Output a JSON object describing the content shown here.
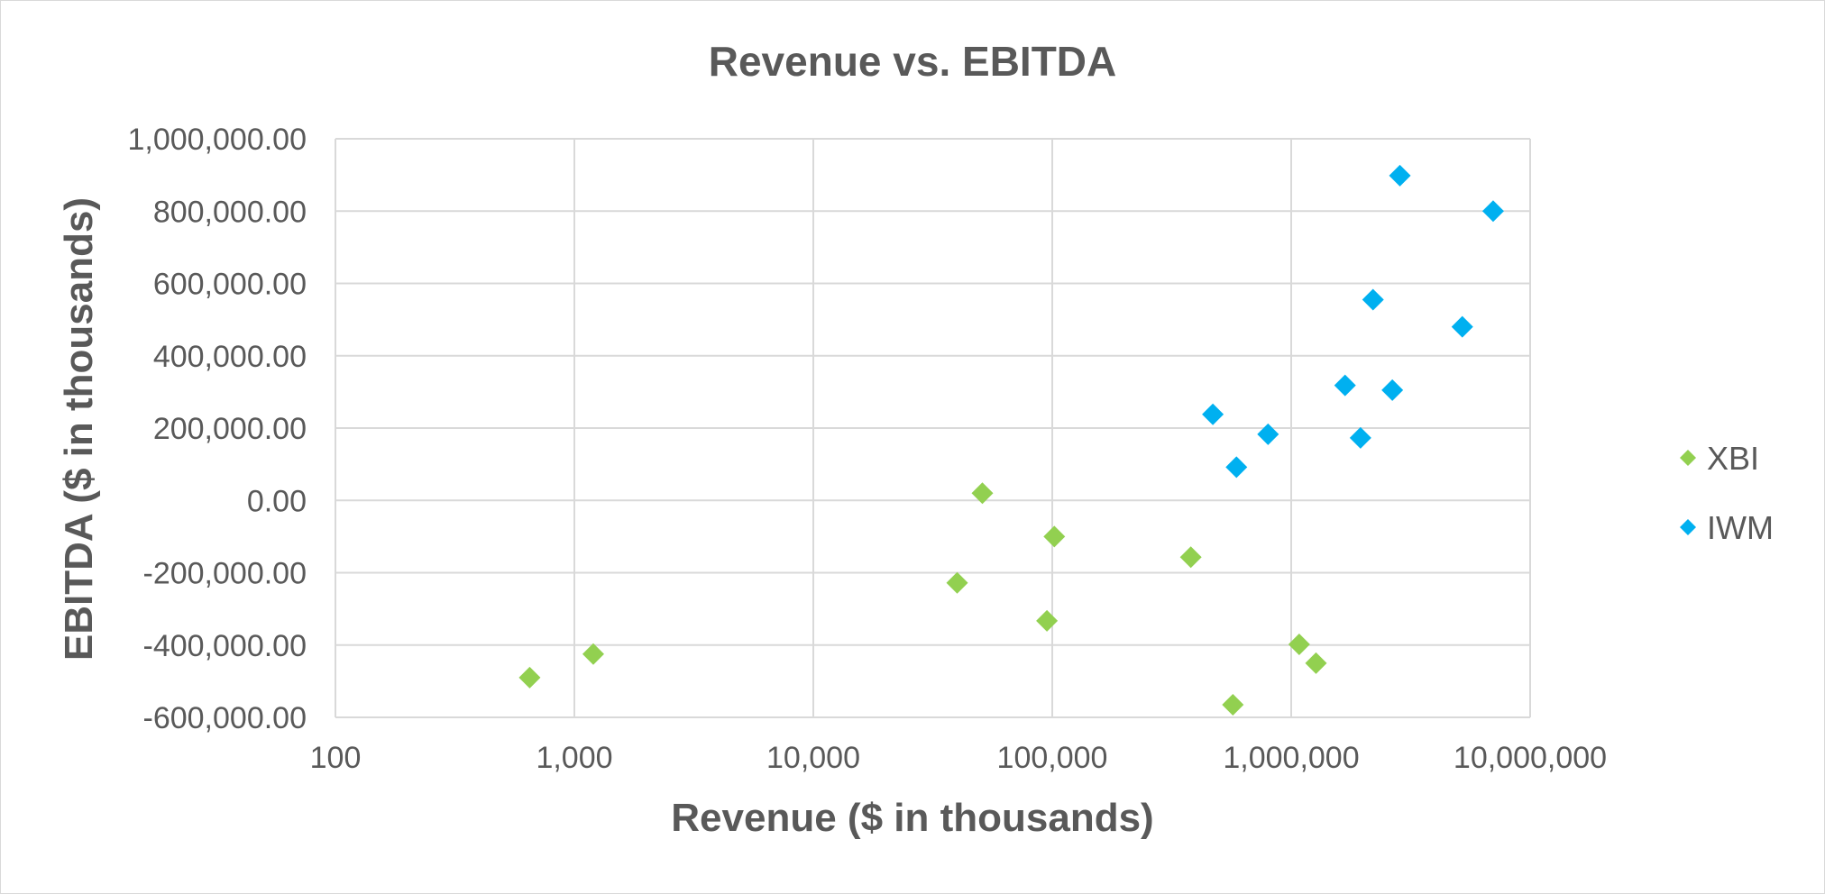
{
  "chart_data": {
    "type": "scatter",
    "title": "Revenue vs. EBITDA",
    "xlabel": "Revenue ($ in thousands)",
    "ylabel": "EBITDA ($ in thousands)",
    "x_scale": "log",
    "xlim": [
      100,
      10000000
    ],
    "ylim": [
      -600000,
      1000000
    ],
    "x_ticks": [
      100,
      1000,
      10000,
      100000,
      1000000,
      10000000
    ],
    "x_tick_labels": [
      "100",
      "1,000",
      "10,000",
      "100,000",
      "1,000,000",
      "10,000,000"
    ],
    "y_ticks": [
      1000000,
      800000,
      600000,
      400000,
      200000,
      0,
      -200000,
      -400000,
      -600000
    ],
    "y_tick_labels": [
      "1,000,000.00",
      "800,000.00",
      "600,000.00",
      "400,000.00",
      "200,000.00",
      "0.00",
      "-200,000.00",
      "-400,000.00",
      "-600,000.00"
    ],
    "grid": true,
    "legend_position": "right",
    "marker": "diamond",
    "series": [
      {
        "name": "XBI",
        "color": "#92D050",
        "points": [
          {
            "x": 650,
            "y": -490000
          },
          {
            "x": 1200,
            "y": -425000
          },
          {
            "x": 40000,
            "y": -228000
          },
          {
            "x": 51000,
            "y": 20000
          },
          {
            "x": 95000,
            "y": -333000
          },
          {
            "x": 102000,
            "y": -100000
          },
          {
            "x": 380000,
            "y": -157000
          },
          {
            "x": 570000,
            "y": -565000
          },
          {
            "x": 1080000,
            "y": -398000
          },
          {
            "x": 1270000,
            "y": -450000
          }
        ]
      },
      {
        "name": "IWM",
        "color": "#00B0F0",
        "points": [
          {
            "x": 470000,
            "y": 238000
          },
          {
            "x": 590000,
            "y": 92000
          },
          {
            "x": 800000,
            "y": 183000
          },
          {
            "x": 1680000,
            "y": 318000
          },
          {
            "x": 1950000,
            "y": 173000
          },
          {
            "x": 2200000,
            "y": 555000
          },
          {
            "x": 2650000,
            "y": 305000
          },
          {
            "x": 2850000,
            "y": 898000
          },
          {
            "x": 5200000,
            "y": 480000
          },
          {
            "x": 7000000,
            "y": 800000
          }
        ]
      }
    ]
  }
}
